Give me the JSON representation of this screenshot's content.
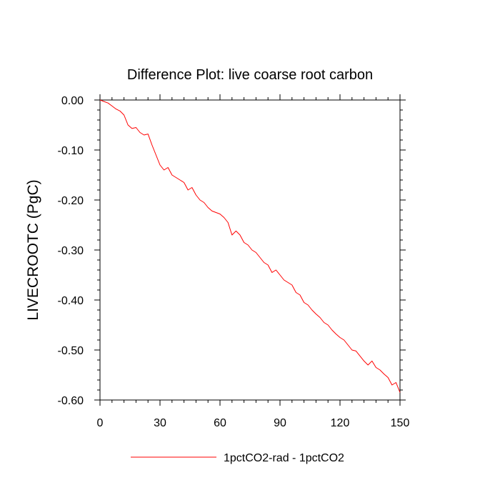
{
  "chart_data": {
    "type": "line",
    "title": "Difference Plot: live coarse root carbon",
    "xlabel": "",
    "ylabel": "LIVECROOTC  (PgC)",
    "xlim": [
      0,
      150
    ],
    "ylim": [
      -0.6,
      0.0
    ],
    "x_ticks": [
      0,
      30,
      60,
      90,
      120,
      150
    ],
    "x_tick_labels": [
      "0",
      "30",
      "60",
      "90",
      "120",
      "150"
    ],
    "y_ticks": [
      0.0,
      -0.1,
      -0.2,
      -0.3,
      -0.4,
      -0.5,
      -0.6
    ],
    "y_tick_labels": [
      "0.00",
      "-0.10",
      "-0.20",
      "-0.30",
      "-0.40",
      "-0.50",
      "-0.60"
    ],
    "grid": false,
    "legend_position": "bottom",
    "colors": {
      "series": "#ff0000",
      "axes": "#000000",
      "background": "#ffffff"
    },
    "series": [
      {
        "name": "1pctCO2-rad - 1pctCO2",
        "x": [
          0,
          2,
          4,
          6,
          8,
          10,
          12,
          14,
          16,
          18,
          20,
          22,
          24,
          26,
          28,
          30,
          32,
          34,
          36,
          38,
          40,
          42,
          44,
          46,
          48,
          50,
          52,
          54,
          56,
          58,
          60,
          62,
          64,
          66,
          68,
          70,
          72,
          74,
          76,
          78,
          80,
          82,
          84,
          86,
          88,
          90,
          92,
          94,
          96,
          98,
          100,
          102,
          104,
          106,
          108,
          110,
          112,
          114,
          116,
          118,
          120,
          122,
          124,
          126,
          128,
          130,
          132,
          134,
          136,
          138,
          140,
          142,
          144,
          146,
          148,
          150
        ],
        "y": [
          0.0,
          -0.003,
          -0.006,
          -0.012,
          -0.018,
          -0.022,
          -0.03,
          -0.05,
          -0.057,
          -0.055,
          -0.065,
          -0.07,
          -0.068,
          -0.09,
          -0.11,
          -0.13,
          -0.14,
          -0.135,
          -0.15,
          -0.155,
          -0.16,
          -0.165,
          -0.18,
          -0.175,
          -0.19,
          -0.2,
          -0.205,
          -0.215,
          -0.222,
          -0.225,
          -0.228,
          -0.235,
          -0.245,
          -0.27,
          -0.262,
          -0.27,
          -0.285,
          -0.29,
          -0.3,
          -0.305,
          -0.315,
          -0.325,
          -0.33,
          -0.345,
          -0.34,
          -0.35,
          -0.36,
          -0.365,
          -0.37,
          -0.385,
          -0.39,
          -0.405,
          -0.41,
          -0.42,
          -0.428,
          -0.435,
          -0.445,
          -0.45,
          -0.46,
          -0.468,
          -0.475,
          -0.48,
          -0.49,
          -0.5,
          -0.502,
          -0.512,
          -0.522,
          -0.53,
          -0.522,
          -0.535,
          -0.54,
          -0.548,
          -0.555,
          -0.57,
          -0.565,
          -0.585
        ]
      }
    ]
  }
}
